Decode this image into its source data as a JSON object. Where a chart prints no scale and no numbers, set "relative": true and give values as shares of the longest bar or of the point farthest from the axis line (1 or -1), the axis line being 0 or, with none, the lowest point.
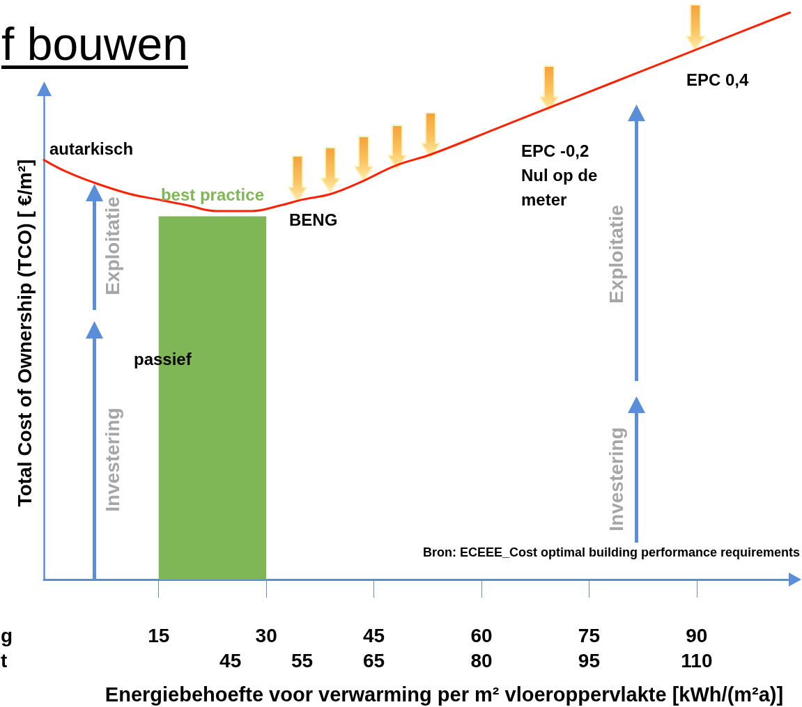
{
  "chart_data": {
    "type": "line",
    "title": "f bouwen",
    "xlabel": "Energiebehoefte voor verwarming per m² vloeroppervlakte [kWh/(m²a)]",
    "ylabel": "Total Cost of Ownership (TCO) [ €/m²]",
    "relative": true,
    "marker": "none",
    "xlim": [
      -1,
      104
    ],
    "xticks": [
      15,
      30,
      45,
      60,
      75,
      90
    ],
    "x2lim": [
      19,
      124
    ],
    "x2ticks": [
      45,
      55,
      65,
      80,
      95,
      110
    ],
    "series": [
      {
        "color": "#ff2000",
        "x": [
          -1,
          2,
          6,
          11,
          15,
          19,
          23,
          28,
          32,
          35,
          39,
          43,
          48,
          53,
          63,
          73,
          83,
          93,
          103
        ],
        "values": [
          0.74,
          0.72,
          0.7,
          0.68,
          0.67,
          0.66,
          0.65,
          0.65,
          0.66,
          0.67,
          0.68,
          0.7,
          0.73,
          0.75,
          0.8,
          0.85,
          0.9,
          0.95,
          1
        ]
      },
      {
        "type": "area",
        "name": "best practice",
        "color": "#7fb656",
        "x": [
          15,
          30
        ],
        "values": [
          0.64,
          0.64
        ]
      }
    ],
    "annotations": [
      "autarkisch",
      "passief",
      "BENG",
      "EPC -0,2 Nul op de meter",
      "EPC 0,4",
      "Exploitatie",
      "Investering",
      "Exploitatie",
      "Investering",
      "Bron: ECEEE_Cost optimal building performance requirements",
      "g",
      "t"
    ]
  }
}
